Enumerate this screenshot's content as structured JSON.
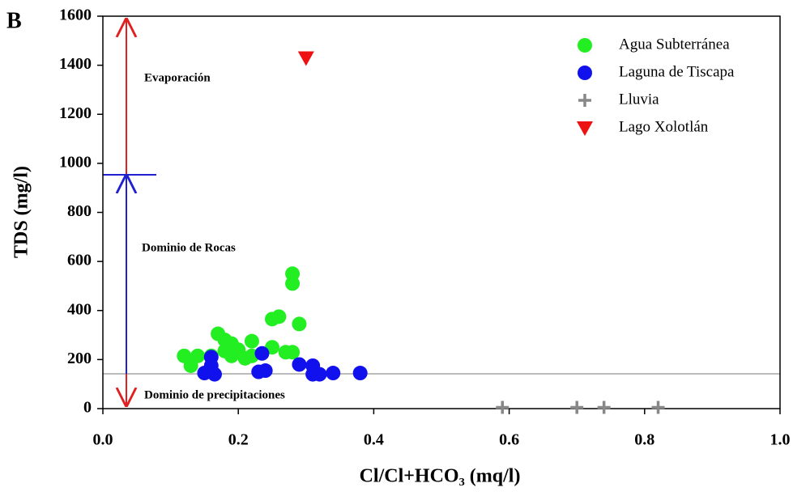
{
  "chart_data": {
    "type": "scatter",
    "panel_label": "B",
    "x_label": "Cl/Cl+HCO₃ (mq/l)",
    "y_label": "TDS (mg/l)",
    "xlim": [
      0,
      1
    ],
    "ylim": [
      0,
      1600
    ],
    "xticks": [
      {
        "value": 0,
        "label": "0.0"
      },
      0.2,
      0.4,
      0.6,
      0.8,
      {
        "value": 1,
        "label": "1.0"
      }
    ],
    "yticks": [
      0,
      200,
      400,
      600,
      800,
      1000,
      1200,
      1400,
      1600
    ],
    "legend": "upper right",
    "annotations": [
      "Evaporación",
      "Dominio de Rocas",
      "Dominio de precipitaciones"
    ],
    "series": [
      {
        "name": "Agua Subterránea",
        "color": "#22ee22",
        "marker": "circle",
        "x": [
          0.12,
          0.13,
          0.14,
          0.16,
          0.17,
          0.18,
          0.19,
          0.19,
          0.2,
          0.21,
          0.22,
          0.22,
          0.25,
          0.26,
          0.25,
          0.27,
          0.28,
          0.28,
          0.29,
          0.28,
          0.18
        ],
        "values": [
          215,
          175,
          215,
          215,
          305,
          280,
          265,
          215,
          240,
          205,
          275,
          215,
          365,
          375,
          250,
          230,
          510,
          550,
          345,
          230,
          235
        ]
      },
      {
        "name": "Laguna de Tiscapa",
        "color": "#1111ee",
        "marker": "circle",
        "x": [
          0.15,
          0.16,
          0.165,
          0.16,
          0.23,
          0.235,
          0.24,
          0.29,
          0.31,
          0.31,
          0.32,
          0.34,
          0.38
        ],
        "values": [
          145,
          210,
          140,
          175,
          150,
          225,
          155,
          180,
          175,
          140,
          140,
          145,
          145
        ]
      },
      {
        "name": "Lluvia",
        "color": "#888888",
        "marker": "plus",
        "x": [
          0.59,
          0.7,
          0.74,
          0.82
        ],
        "values": [
          5,
          5,
          5,
          5
        ]
      },
      {
        "name": "Lago Xolotlán",
        "color": "#ee1111",
        "marker": "triangle-down",
        "x": [
          0.3
        ],
        "values": [
          1430
        ]
      }
    ]
  }
}
